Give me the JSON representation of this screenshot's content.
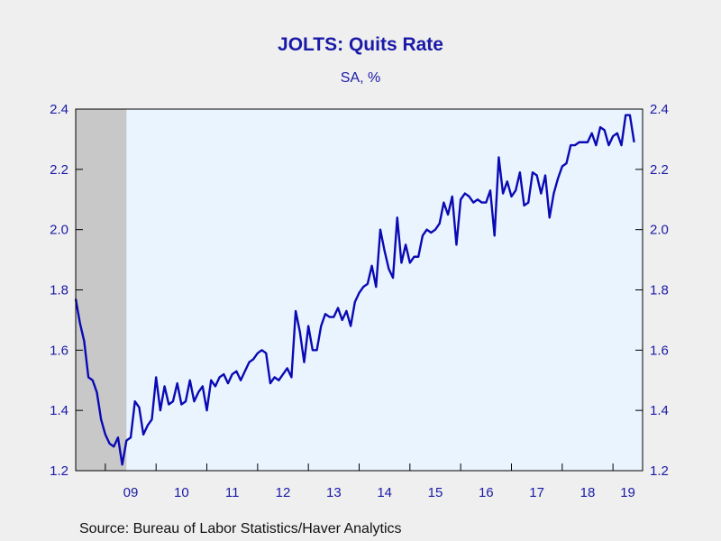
{
  "title": "JOLTS: Quits Rate",
  "subtitle": "SA, %",
  "source": "Source:  Bureau of Labor Statistics/Haver Analytics",
  "chart_data": {
    "type": "line",
    "title": "JOLTS: Quits Rate",
    "subtitle": "SA, %",
    "xlabel": "",
    "ylabel": "",
    "ylim": [
      1.2,
      2.4
    ],
    "yticks": [
      1.2,
      1.4,
      1.6,
      1.8,
      2.0,
      2.2,
      2.4
    ],
    "ytick_labels": [
      "1.2",
      "1.4",
      "1.6",
      "1.8",
      "2.0",
      "2.2",
      "2.4"
    ],
    "xtick_labels": [
      "09",
      "10",
      "11",
      "12",
      "13",
      "14",
      "15",
      "16",
      "17",
      "18",
      "19"
    ],
    "xrange": [
      "2008-06",
      "2019-08"
    ],
    "grid": false,
    "recession_shading": {
      "start": "2008-06",
      "end": "2009-06",
      "color": "#c8c8c8"
    },
    "colors": {
      "line": "#0a0ab4",
      "plot_bg": "#eaf4ff",
      "text": "#1a1aa8"
    },
    "series": [
      {
        "start": "2008-06",
        "frequency": "monthly",
        "values": [
          1.77,
          1.69,
          1.63,
          1.51,
          1.5,
          1.46,
          1.37,
          1.32,
          1.29,
          1.28,
          1.31,
          1.22,
          1.3,
          1.31,
          1.43,
          1.41,
          1.32,
          1.35,
          1.37,
          1.51,
          1.4,
          1.48,
          1.42,
          1.43,
          1.49,
          1.42,
          1.43,
          1.5,
          1.43,
          1.46,
          1.48,
          1.4,
          1.5,
          1.48,
          1.51,
          1.52,
          1.49,
          1.52,
          1.53,
          1.5,
          1.53,
          1.56,
          1.57,
          1.59,
          1.6,
          1.59,
          1.49,
          1.51,
          1.5,
          1.52,
          1.54,
          1.51,
          1.73,
          1.66,
          1.56,
          1.68,
          1.6,
          1.6,
          1.68,
          1.72,
          1.71,
          1.71,
          1.74,
          1.7,
          1.73,
          1.68,
          1.76,
          1.79,
          1.81,
          1.82,
          1.88,
          1.81,
          2.0,
          1.93,
          1.87,
          1.84,
          2.04,
          1.89,
          1.95,
          1.89,
          1.91,
          1.91,
          1.98,
          2.0,
          1.99,
          2.0,
          2.02,
          2.09,
          2.05,
          2.11,
          1.95,
          2.1,
          2.12,
          2.11,
          2.09,
          2.1,
          2.09,
          2.09,
          2.13,
          1.98,
          2.24,
          2.12,
          2.16,
          2.11,
          2.13,
          2.19,
          2.08,
          2.09,
          2.19,
          2.18,
          2.12,
          2.18,
          2.04,
          2.12,
          2.17,
          2.21,
          2.22,
          2.28,
          2.28,
          2.29,
          2.29,
          2.29,
          2.32,
          2.28,
          2.34,
          2.33,
          2.28,
          2.31,
          2.32,
          2.28,
          2.38,
          2.38,
          2.29
        ]
      }
    ]
  }
}
